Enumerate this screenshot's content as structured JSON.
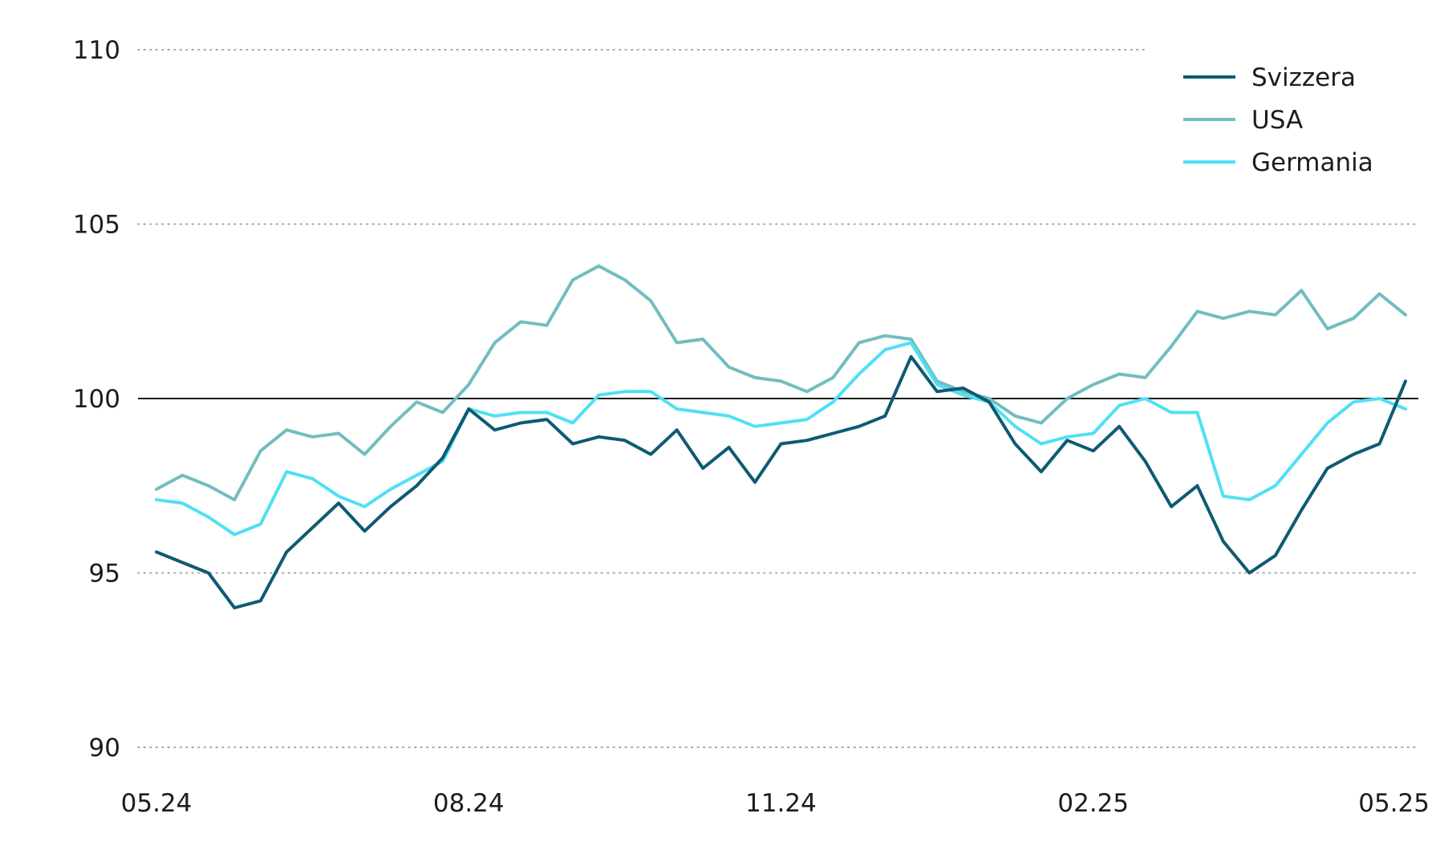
{
  "chart_data": {
    "type": "line",
    "title": "",
    "xlabel": "",
    "ylabel": "",
    "ylim": [
      90,
      110
    ],
    "yticks": [
      "110",
      "105",
      "100",
      "95",
      "90"
    ],
    "xtick_labels": [
      "05.24",
      "08.24",
      "11.24",
      "02.25",
      "05.25"
    ],
    "xtick_positions": [
      0,
      3,
      6,
      9,
      12
    ],
    "x_range": [
      0,
      12
    ],
    "baseline": 100,
    "grid": "horizontal dotted",
    "legend_position": "top-right",
    "x": [
      0,
      0.25,
      0.5,
      0.75,
      1,
      1.25,
      1.5,
      1.75,
      2,
      2.25,
      2.5,
      2.75,
      3,
      3.25,
      3.5,
      3.75,
      4,
      4.25,
      4.5,
      4.75,
      5,
      5.25,
      5.5,
      5.75,
      6,
      6.25,
      6.5,
      6.75,
      7,
      7.25,
      7.5,
      7.75,
      8,
      8.25,
      8.5,
      8.75,
      9,
      9.25,
      9.5,
      9.75,
      10,
      10.25,
      10.5,
      10.75,
      11,
      11.25,
      11.5,
      11.75,
      12
    ],
    "series": [
      {
        "name": "Svizzera",
        "color": "#0e5a73",
        "values": [
          95.6,
          95.3,
          95.0,
          94.0,
          94.2,
          95.6,
          96.3,
          97.0,
          96.2,
          96.9,
          97.5,
          98.3,
          99.7,
          99.1,
          99.3,
          99.4,
          98.7,
          98.9,
          98.8,
          98.4,
          99.1,
          98.0,
          98.6,
          97.6,
          98.7,
          98.8,
          99.0,
          99.2,
          99.5,
          101.2,
          100.2,
          100.3,
          99.9,
          98.7,
          97.9,
          98.8,
          98.5,
          99.2,
          98.2,
          96.9,
          97.5,
          95.9,
          95.0,
          95.5,
          96.8,
          98.0,
          98.4,
          98.7,
          100.5
        ]
      },
      {
        "name": "USA",
        "color": "#72bdbf",
        "values": [
          97.4,
          97.8,
          97.5,
          97.1,
          98.5,
          99.1,
          98.9,
          99.0,
          98.4,
          99.2,
          99.9,
          99.6,
          100.4,
          101.6,
          102.2,
          102.1,
          103.4,
          103.8,
          103.4,
          102.8,
          101.6,
          101.7,
          100.9,
          100.6,
          100.5,
          100.2,
          100.6,
          101.6,
          101.8,
          101.7,
          100.5,
          100.2,
          100.0,
          99.5,
          99.3,
          100.0,
          100.4,
          100.7,
          100.6,
          101.5,
          102.5,
          102.3,
          102.5,
          102.4,
          103.1,
          102.0,
          102.3,
          103.0,
          102.4
        ]
      },
      {
        "name": "Germania",
        "color": "#4fe0f5",
        "values": [
          97.1,
          97.0,
          96.6,
          96.1,
          96.4,
          97.9,
          97.7,
          97.2,
          96.9,
          97.4,
          97.8,
          98.2,
          99.7,
          99.5,
          99.6,
          99.6,
          99.3,
          100.1,
          100.2,
          100.2,
          99.7,
          99.6,
          99.5,
          99.2,
          99.3,
          99.4,
          99.9,
          100.7,
          101.4,
          101.6,
          100.4,
          100.1,
          99.9,
          99.2,
          98.7,
          98.9,
          99.0,
          99.8,
          100.0,
          99.6,
          99.6,
          97.2,
          97.1,
          97.5,
          98.4,
          99.3,
          99.9,
          100.0,
          99.7
        ]
      }
    ]
  }
}
